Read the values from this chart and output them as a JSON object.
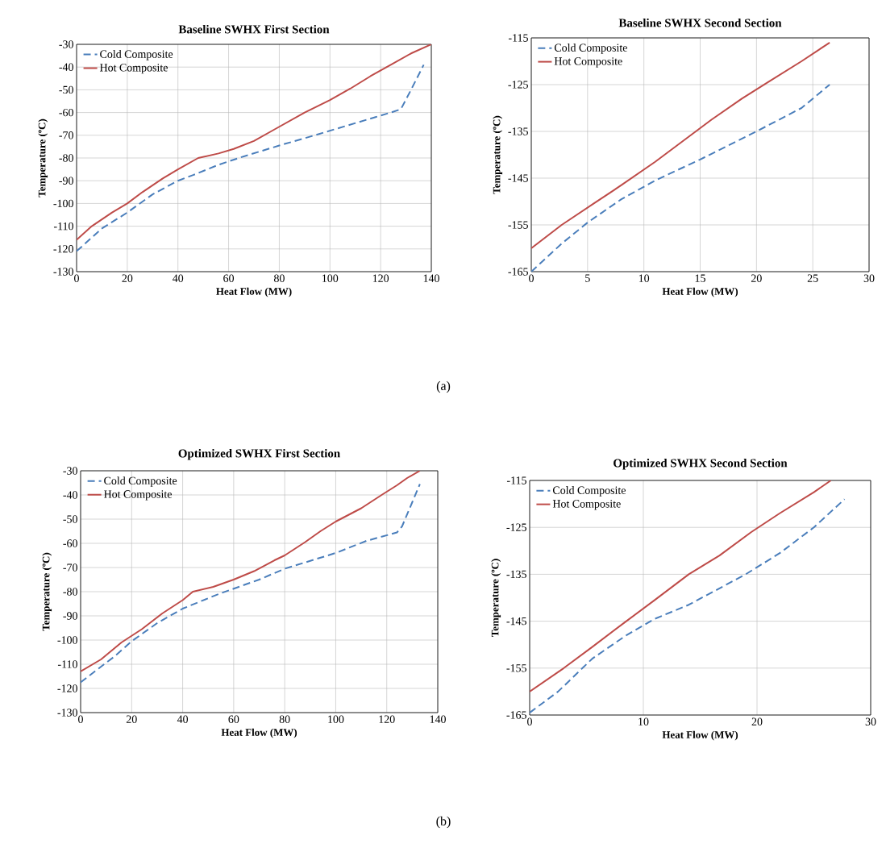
{
  "chart_data": [
    {
      "type": "line",
      "title": "Baseline SWHX First Section",
      "xlabel": "Heat Flow (MW)",
      "ylabel": "Temperature (ºC)",
      "xlim": [
        0,
        140
      ],
      "ylim": [
        -130,
        -30
      ],
      "xticks": [
        0,
        20,
        40,
        60,
        80,
        100,
        120,
        140
      ],
      "yticks": [
        -130,
        -120,
        -110,
        -100,
        -90,
        -80,
        -70,
        -60,
        -50,
        -40,
        -30
      ],
      "grid": true,
      "legend": "top left",
      "annotations": [
        "(a)"
      ],
      "series": [
        {
          "name": "Cold Composite",
          "color": "#4a7ebb",
          "line_style": "dashed",
          "x": [
            0,
            10,
            20,
            30,
            40,
            46,
            56,
            64,
            80,
            94,
            100,
            118,
            124,
            128,
            132,
            137
          ],
          "values": [
            -121,
            -111,
            -104,
            -96,
            -90,
            -87.5,
            -83,
            -80,
            -74.5,
            -70,
            -68,
            -62,
            -60,
            -58.5,
            -50,
            -39
          ]
        },
        {
          "name": "Hot Composite",
          "color": "#be4b48",
          "line_style": "solid",
          "x": [
            0,
            6,
            14,
            20,
            26,
            34,
            40,
            48,
            56,
            62,
            70,
            78,
            90,
            100,
            108,
            116,
            124,
            132,
            140
          ],
          "values": [
            -116,
            -110,
            -104,
            -100,
            -95,
            -89,
            -85,
            -80,
            -78,
            -76,
            -72.5,
            -67.5,
            -60,
            -54.5,
            -49.5,
            -44,
            -39,
            -34,
            -30
          ]
        }
      ]
    },
    {
      "type": "line",
      "title": "Baseline SWHX Second Section",
      "xlabel": "Heat Flow (MW)",
      "ylabel": "Temperature (ºC)",
      "xlim": [
        0,
        30
      ],
      "ylim": [
        -165,
        -115
      ],
      "xticks": [
        0,
        5,
        10,
        15,
        20,
        25,
        30
      ],
      "yticks": [
        -165,
        -155,
        -145,
        -135,
        -125,
        -115
      ],
      "grid": true,
      "legend": "top left",
      "series": [
        {
          "name": "Cold Composite",
          "color": "#4a7ebb",
          "line_style": "dashed",
          "x": [
            0,
            2.7,
            5,
            8,
            11,
            15,
            20,
            24,
            26.5
          ],
          "values": [
            -165,
            -159,
            -154.5,
            -149.5,
            -145.5,
            -141,
            -135,
            -130,
            -125
          ]
        },
        {
          "name": "Hot Composite",
          "color": "#be4b48",
          "line_style": "solid",
          "x": [
            0,
            2.7,
            5.5,
            8,
            11,
            13.5,
            16,
            18.7,
            21,
            24,
            26.5
          ],
          "values": [
            -160,
            -155,
            -150.5,
            -146.5,
            -141.5,
            -137,
            -132.5,
            -128,
            -124.5,
            -120,
            -116
          ]
        }
      ]
    },
    {
      "type": "line",
      "title": "Optimized SWHX First Section",
      "xlabel": "Heat Flow (MW)",
      "ylabel": "Temperature (ºC)",
      "xlim": [
        0,
        140
      ],
      "ylim": [
        -130,
        -30
      ],
      "xticks": [
        0,
        20,
        40,
        60,
        80,
        100,
        120,
        140
      ],
      "yticks": [
        -130,
        -120,
        -110,
        -100,
        -90,
        -80,
        -70,
        -60,
        -50,
        -40,
        -30
      ],
      "grid": true,
      "legend": "top left",
      "annotations": [
        "(b)"
      ],
      "series": [
        {
          "name": "Cold Composite",
          "color": "#4a7ebb",
          "line_style": "dashed",
          "x": [
            0,
            8,
            13,
            20,
            30,
            40,
            54,
            70,
            80,
            100,
            112,
            124,
            126,
            130,
            133
          ],
          "values": [
            -117.5,
            -111,
            -107,
            -100.5,
            -93,
            -87,
            -81,
            -75,
            -70.5,
            -64,
            -59,
            -55.5,
            -53,
            -43,
            -35.5
          ]
        },
        {
          "name": "Hot Composite",
          "color": "#be4b48",
          "line_style": "solid",
          "x": [
            0,
            8,
            16,
            24,
            32,
            40,
            44,
            52,
            60,
            68,
            76,
            80,
            88,
            94,
            100,
            110,
            118,
            124,
            128,
            133
          ],
          "values": [
            -113,
            -108,
            -101,
            -95.5,
            -89,
            -83.5,
            -80,
            -78,
            -75,
            -71.5,
            -67,
            -65,
            -59.5,
            -55,
            -51,
            -45.5,
            -40,
            -36,
            -33,
            -30
          ]
        }
      ]
    },
    {
      "type": "line",
      "title": "Optimized SWHX Second Section",
      "xlabel": "Heat Flow (MW)",
      "ylabel": "Temperature (ºC)",
      "xlim": [
        0,
        30
      ],
      "ylim": [
        -165,
        -115
      ],
      "xticks": [
        0,
        10,
        20,
        30
      ],
      "yticks": [
        -165,
        -155,
        -145,
        -135,
        -125,
        -115
      ],
      "grid": true,
      "legend": "top left",
      "series": [
        {
          "name": "Cold Composite",
          "color": "#4a7ebb",
          "line_style": "dashed",
          "x": [
            0,
            2.5,
            5.5,
            8.5,
            11,
            14,
            19,
            22,
            25,
            27.7
          ],
          "values": [
            -164.5,
            -160,
            -153,
            -148,
            -144.5,
            -141.5,
            -135,
            -130.5,
            -125,
            -119
          ]
        },
        {
          "name": "Hot Composite",
          "color": "#be4b48",
          "line_style": "solid",
          "x": [
            0,
            3,
            5.5,
            8.5,
            11,
            14,
            16.7,
            19.5,
            22,
            25,
            26.5
          ],
          "values": [
            -160,
            -155,
            -150.5,
            -145,
            -140.5,
            -135,
            -131,
            -126,
            -122,
            -117.5,
            -115
          ]
        }
      ]
    }
  ]
}
